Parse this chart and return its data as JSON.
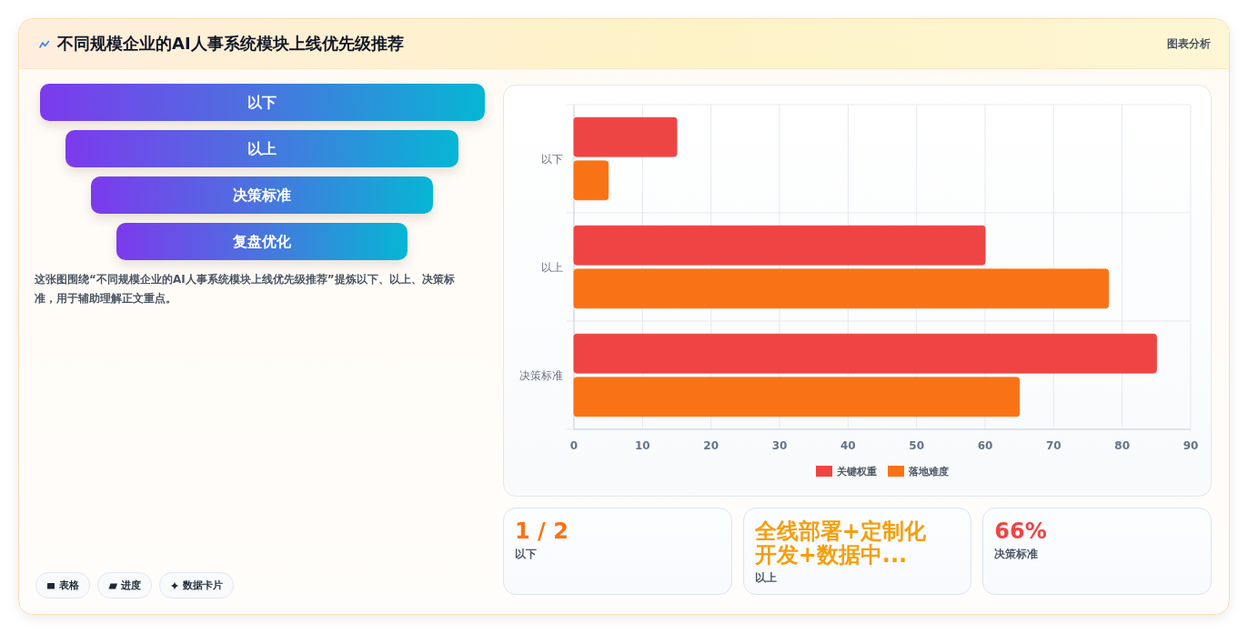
{
  "chart_data": [
    {
      "type": "other",
      "title": "不同规模企业的AI人事系统模块上线优先级推荐",
      "annotations": [
        "图表分析"
      ]
    },
    {
      "type": "other",
      "categories": [
        "以下",
        "以上",
        "决策标准",
        "复盘优化"
      ],
      "annotations": [
        "这张图围绕“不同规模企业的AI人事系统模块上线优先级推荐”提炼以下、以上、决策标准，用于辅助理解正文重点。",
        "表格",
        "进度",
        "数据卡片"
      ]
    },
    {
      "type": "bar",
      "orientation": "horizontal",
      "categories": [
        "以下",
        "以上",
        "决策标准"
      ],
      "series": [
        {
          "name": "关键权重",
          "color": "#ef4444",
          "values": [
            15,
            60,
            85
          ]
        },
        {
          "name": "落地难度",
          "color": "#f97316",
          "values": [
            5,
            78,
            65
          ]
        }
      ],
      "xlim": [
        0,
        90
      ],
      "xticks": [
        0,
        10,
        20,
        30,
        40,
        50,
        60,
        70,
        80,
        90
      ],
      "grid": true,
      "legend": "bottom"
    },
    {
      "type": "other",
      "categories": [
        "以下",
        "以上",
        "决策标准"
      ],
      "value_labels": [
        "1 / 2",
        "全线部署+定制化开发+数据中...",
        "66%"
      ]
    }
  ]
}
